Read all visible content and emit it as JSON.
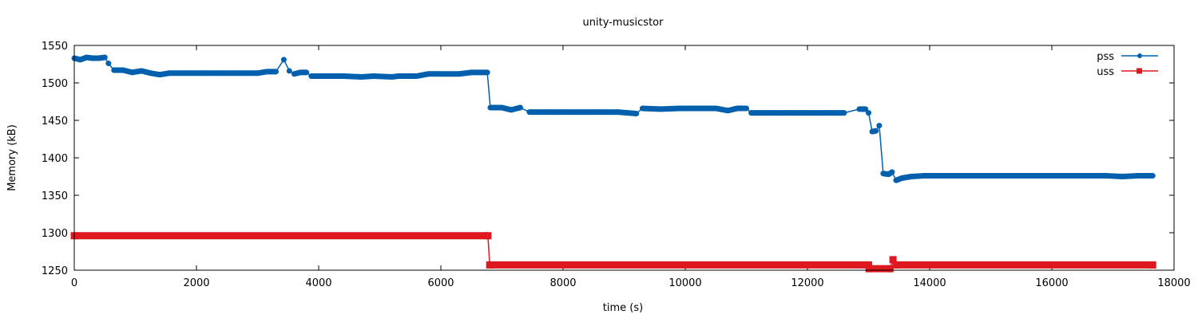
{
  "chart_data": {
    "type": "line",
    "title": "unity-musicstor",
    "xlabel": "time (s)",
    "ylabel": "Memory (kB)",
    "xlim": [
      0,
      18000
    ],
    "ylim": [
      1250,
      1550
    ],
    "xticks": [
      0,
      2000,
      4000,
      6000,
      8000,
      10000,
      12000,
      14000,
      16000,
      18000
    ],
    "yticks": [
      1250,
      1300,
      1350,
      1400,
      1450,
      1500,
      1550
    ],
    "grid": false,
    "legend_position": "top-right",
    "series": [
      {
        "name": "pss",
        "color": "#0060ad",
        "marker": "circle",
        "points": [
          [
            0,
            1533
          ],
          [
            100,
            1531
          ],
          [
            200,
            1534
          ],
          [
            300,
            1533
          ],
          [
            400,
            1533
          ],
          [
            500,
            1534
          ],
          [
            560,
            1526
          ],
          [
            650,
            1517
          ],
          [
            800,
            1517
          ],
          [
            950,
            1514
          ],
          [
            1100,
            1516
          ],
          [
            1250,
            1513
          ],
          [
            1400,
            1511
          ],
          [
            1550,
            1513
          ],
          [
            1800,
            1513
          ],
          [
            2100,
            1513
          ],
          [
            2400,
            1513
          ],
          [
            2700,
            1513
          ],
          [
            3000,
            1513
          ],
          [
            3150,
            1515
          ],
          [
            3300,
            1515
          ],
          [
            3430,
            1531
          ],
          [
            3520,
            1516
          ],
          [
            3600,
            1512
          ],
          [
            3700,
            1514
          ],
          [
            3800,
            1514
          ],
          [
            3880,
            1509
          ],
          [
            4100,
            1509
          ],
          [
            4400,
            1509
          ],
          [
            4700,
            1508
          ],
          [
            4900,
            1509
          ],
          [
            5200,
            1508
          ],
          [
            5300,
            1509
          ],
          [
            5600,
            1509
          ],
          [
            5800,
            1512
          ],
          [
            6000,
            1512
          ],
          [
            6300,
            1512
          ],
          [
            6500,
            1514
          ],
          [
            6760,
            1514
          ],
          [
            6810,
            1467
          ],
          [
            7000,
            1467
          ],
          [
            7150,
            1464
          ],
          [
            7300,
            1467
          ],
          [
            7450,
            1461
          ],
          [
            7700,
            1461
          ],
          [
            8000,
            1461
          ],
          [
            8300,
            1461
          ],
          [
            8600,
            1461
          ],
          [
            8900,
            1461
          ],
          [
            9200,
            1459
          ],
          [
            9300,
            1466
          ],
          [
            9600,
            1465
          ],
          [
            9900,
            1466
          ],
          [
            10200,
            1466
          ],
          [
            10500,
            1466
          ],
          [
            10700,
            1463
          ],
          [
            10850,
            1466
          ],
          [
            11000,
            1466
          ],
          [
            11080,
            1460
          ],
          [
            11400,
            1460
          ],
          [
            11700,
            1460
          ],
          [
            12000,
            1460
          ],
          [
            12300,
            1460
          ],
          [
            12600,
            1460
          ],
          [
            12850,
            1465
          ],
          [
            12950,
            1465
          ],
          [
            13000,
            1460
          ],
          [
            13060,
            1435
          ],
          [
            13120,
            1436
          ],
          [
            13175,
            1443
          ],
          [
            13240,
            1379
          ],
          [
            13330,
            1378
          ],
          [
            13385,
            1381
          ],
          [
            13450,
            1370
          ],
          [
            13550,
            1373
          ],
          [
            13700,
            1375
          ],
          [
            13900,
            1376
          ],
          [
            14200,
            1376
          ],
          [
            14500,
            1376
          ],
          [
            14800,
            1376
          ],
          [
            15100,
            1376
          ],
          [
            15400,
            1376
          ],
          [
            15700,
            1376
          ],
          [
            16000,
            1376
          ],
          [
            16300,
            1376
          ],
          [
            16600,
            1376
          ],
          [
            16900,
            1376
          ],
          [
            17150,
            1375
          ],
          [
            17400,
            1376
          ],
          [
            17650,
            1376
          ]
        ]
      },
      {
        "name": "uss",
        "color": "#dd181f",
        "marker": "square",
        "points": [
          [
            0,
            1296
          ],
          [
            6770,
            1296
          ],
          [
            6800,
            1257
          ],
          [
            13000,
            1257
          ],
          [
            13010,
            1252
          ],
          [
            13350,
            1252
          ],
          [
            13400,
            1264
          ],
          [
            13450,
            1257
          ],
          [
            17650,
            1257
          ]
        ]
      }
    ]
  }
}
